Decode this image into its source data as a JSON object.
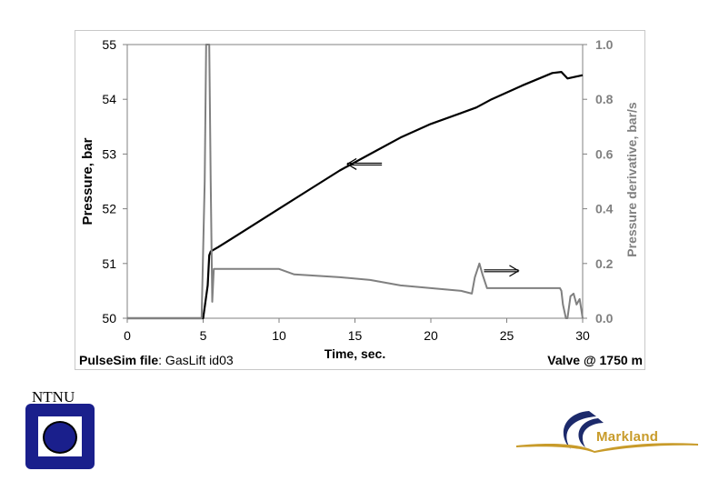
{
  "chart_data": {
    "type": "line",
    "xlabel": "Time, sec.",
    "ylabel_left": "Pressure, bar",
    "ylabel_right": "Pressure derivative, bar/s",
    "xlim": [
      0,
      30
    ],
    "ylim_left": [
      50,
      55
    ],
    "ylim_right": [
      0,
      1.0
    ],
    "x_ticks": [
      "0",
      "5",
      "10",
      "15",
      "20",
      "25",
      "30"
    ],
    "y_left_ticks": [
      "50",
      "51",
      "52",
      "53",
      "54",
      "55"
    ],
    "y_right_ticks": [
      "0.0",
      "0.2",
      "0.4",
      "0.6",
      "0.8",
      "1.0"
    ],
    "grid": false,
    "series": [
      {
        "axis": "left",
        "color": "#000000",
        "x": [
          0,
          5.0,
          5.3,
          5.4,
          5.5,
          6.0,
          8,
          10,
          12,
          14,
          16,
          18,
          20,
          22,
          23,
          24,
          26,
          28,
          28.6,
          29,
          30
        ],
        "y": [
          50.0,
          50.0,
          50.6,
          51.15,
          51.22,
          51.3,
          51.65,
          52.0,
          52.35,
          52.7,
          53.0,
          53.3,
          53.55,
          53.75,
          53.85,
          54.0,
          54.25,
          54.48,
          54.5,
          54.38,
          54.44
        ]
      },
      {
        "axis": "right",
        "color": "#808080",
        "x": [
          0,
          4.9,
          5.1,
          5.2,
          5.3,
          5.4,
          5.5,
          5.6,
          5.7,
          5.8,
          6.0,
          8,
          10,
          11,
          14,
          16,
          18,
          20,
          22,
          22.7,
          22.9,
          23.2,
          23.4,
          23.7,
          24,
          26,
          28.5,
          28.6,
          28.7,
          28.9,
          29,
          29.2,
          29.4,
          29.6,
          29.8,
          30
        ],
        "y": [
          0.0,
          0.0,
          0.5,
          1.0,
          1.0,
          1.0,
          0.5,
          0.06,
          0.18,
          0.18,
          0.18,
          0.18,
          0.18,
          0.16,
          0.15,
          0.14,
          0.12,
          0.11,
          0.1,
          0.09,
          0.15,
          0.2,
          0.16,
          0.11,
          0.11,
          0.11,
          0.11,
          0.1,
          0.05,
          0.0,
          0.0,
          0.08,
          0.09,
          0.05,
          0.07,
          0.0
        ]
      }
    ],
    "annotations": [
      {
        "type": "arrow",
        "direction": "left",
        "x": 14.5,
        "y_left": 52.8
      },
      {
        "type": "arrow",
        "direction": "right",
        "x": 23.5,
        "y_left": 50.85
      }
    ]
  },
  "footer": {
    "file_label": "PulseSim file",
    "file_value": ": GasLift id03",
    "valve_label": "Valve @ 1750 m"
  },
  "logos": {
    "ntnu": "NTNU",
    "markland": "Markland"
  }
}
